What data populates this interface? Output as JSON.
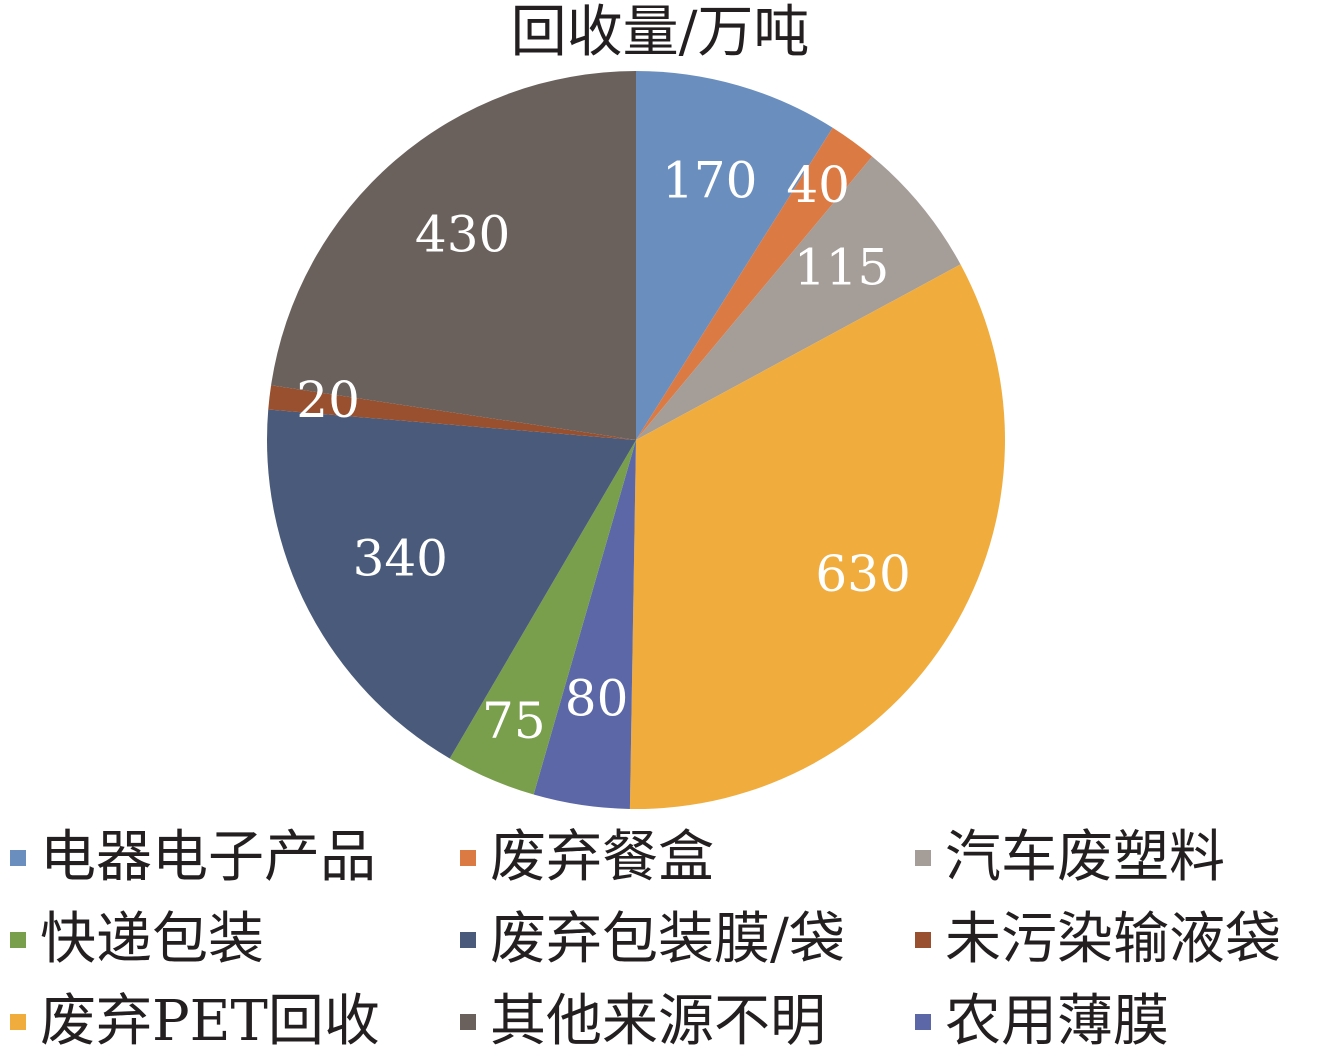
{
  "chart_data": {
    "type": "pie",
    "title": "回收量/万吨",
    "start": "12 o'clock",
    "direction": "clockwise",
    "slices": [
      {
        "label": "电器电子产品",
        "value": 170,
        "color": "#6a8fbf"
      },
      {
        "label": "废弃餐盒",
        "value": 40,
        "color": "#dc7a43"
      },
      {
        "label": "汽车废塑料",
        "value": 115,
        "color": "#a59d98"
      },
      {
        "label": "废弃PET回收",
        "value": 630,
        "color": "#f0ad3e"
      },
      {
        "label": "农用薄膜",
        "value": 80,
        "color": "#5b67a6"
      },
      {
        "label": "快递包装",
        "value": 75,
        "color": "#7a9f4c"
      },
      {
        "label": "废弃包装膜/袋",
        "value": 340,
        "color": "#4a5a7a"
      },
      {
        "label": "未污染输液袋",
        "value": 20,
        "color": "#99502e"
      },
      {
        "label": "其他来源不明",
        "value": 430,
        "color": "#6a615c"
      }
    ],
    "legend": {
      "placement": "bottom",
      "items": [
        {
          "label": "电器电子产品",
          "color": "#6a8fbf"
        },
        {
          "label": "废弃餐盒",
          "color": "#dc7a43"
        },
        {
          "label": "汽车废塑料",
          "color": "#a59d98"
        },
        {
          "label": "快递包装",
          "color": "#7a9f4c"
        },
        {
          "label": "废弃包装膜/袋",
          "color": "#4a5a7a"
        },
        {
          "label": "未污染输液袋",
          "color": "#99502e"
        },
        {
          "label": "废弃PET回收",
          "color": "#f0ad3e"
        },
        {
          "label": "其他来源不明",
          "color": "#6a615c"
        },
        {
          "label": "农用薄膜",
          "color": "#5b67a6"
        }
      ]
    }
  }
}
